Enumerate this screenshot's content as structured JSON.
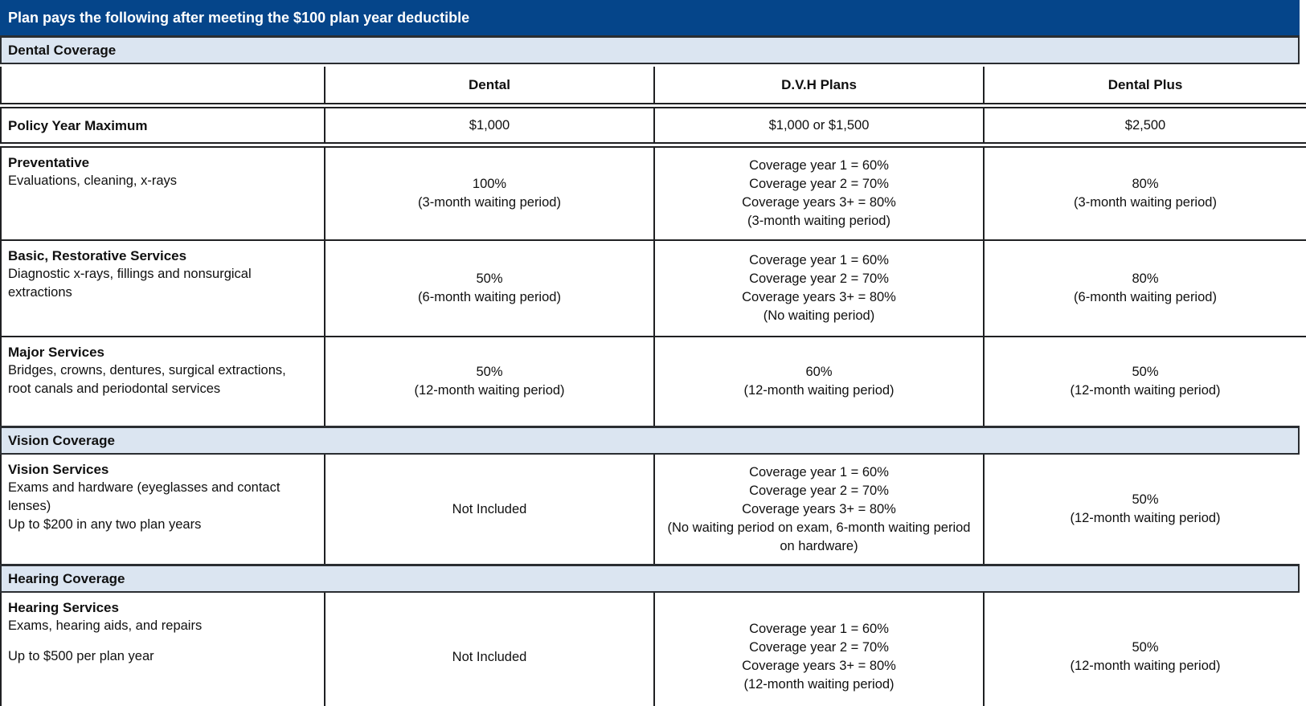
{
  "banner": {
    "title": "Plan pays the following after meeting the $100 plan year deductible"
  },
  "colors": {
    "banner_bg": "#05458a",
    "banner_fg": "#ffffff",
    "section_band_bg": "#dbe5f1",
    "border": "#1f2022"
  },
  "table": {
    "column_headers": [
      "Dental",
      "D.V.H Plans",
      "Dental Plus"
    ],
    "body": [
      {
        "kind": "section",
        "id": "dental-coverage",
        "label": "Dental Coverage"
      },
      {
        "kind": "header"
      },
      {
        "kind": "row",
        "id": "policy-year-maximum",
        "title": "Policy Year Maximum",
        "desc": [],
        "cells": [
          [
            "$1,000"
          ],
          [
            "$1,000 or $1,500"
          ],
          [
            "$2,500"
          ]
        ]
      },
      {
        "kind": "row",
        "id": "preventative",
        "title": "Preventative",
        "desc": [
          "Evaluations, cleaning, x-rays"
        ],
        "cells": [
          [
            "100%",
            "(3-month waiting period)"
          ],
          [
            "Coverage year 1 = 60%",
            "Coverage year 2 = 70%",
            "Coverage years 3+ = 80%",
            "(3-month waiting period)"
          ],
          [
            "80%",
            "(3-month waiting period)"
          ]
        ]
      },
      {
        "kind": "row",
        "id": "basic-restorative-services",
        "title": "Basic, Restorative Services",
        "desc": [
          "Diagnostic x-rays, fillings and nonsurgical extractions"
        ],
        "cells": [
          [
            "50%",
            "(6-month waiting period)"
          ],
          [
            "Coverage year 1 = 60%",
            "Coverage year 2 = 70%",
            "Coverage years 3+ = 80%",
            "(No waiting period)"
          ],
          [
            "80%",
            "(6-month waiting period)"
          ]
        ]
      },
      {
        "kind": "row",
        "id": "major-services",
        "title": "Major Services",
        "desc": [
          "Bridges, crowns, dentures, surgical extractions, root canals and periodontal services"
        ],
        "cells": [
          [
            "50%",
            "(12-month waiting period)"
          ],
          [
            "60%",
            "(12-month waiting period)"
          ],
          [
            "50%",
            "(12-month waiting period)"
          ]
        ]
      },
      {
        "kind": "section",
        "id": "vision-coverage",
        "label": "Vision Coverage"
      },
      {
        "kind": "row",
        "id": "vision-services",
        "title": "Vision Services",
        "desc": [
          "Exams and hardware (eyeglasses and contact lenses)",
          "Up to $200 in any two plan years"
        ],
        "cells": [
          [
            "Not Included"
          ],
          [
            "Coverage year 1 = 60%",
            "Coverage year 2 = 70%",
            "Coverage years 3+ = 80%",
            "(No waiting period on exam, 6-month waiting period on hardware)"
          ],
          [
            "50%",
            "(12-month waiting period)"
          ]
        ]
      },
      {
        "kind": "section",
        "id": "hearing-coverage",
        "label": "Hearing Coverage"
      },
      {
        "kind": "row",
        "id": "hearing-services",
        "title": "Hearing Services",
        "desc": [
          "Exams, hearing aids, and repairs",
          "Up to $500 per plan year"
        ],
        "cells": [
          [
            "Not Included"
          ],
          [
            "Coverage year 1 = 60%",
            "Coverage year 2 = 70%",
            "Coverage years 3+ = 80%",
            "(12-month waiting period)"
          ],
          [
            "50%",
            "(12-month waiting period)"
          ]
        ]
      }
    ]
  }
}
